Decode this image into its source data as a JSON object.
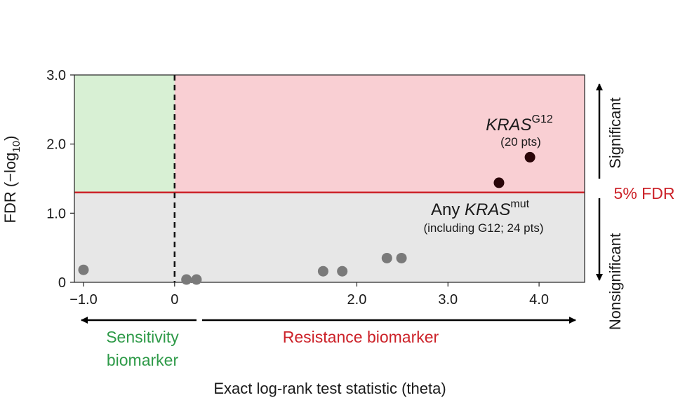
{
  "chart_data": {
    "type": "scatter",
    "xlabel": "Exact log-rank test statistic (theta)",
    "ylabel_main": "FDR (−log",
    "ylabel_sub": "10",
    "ylabel_end": ")",
    "xlim": [
      -1.1,
      4.5
    ],
    "ylim": [
      0,
      3.0
    ],
    "x_ticks": [
      {
        "value": -1.0,
        "label": "−1.0"
      },
      {
        "value": 0,
        "label": "0"
      },
      {
        "value": 2.0,
        "label": "2.0"
      },
      {
        "value": 3.0,
        "label": "3.0"
      },
      {
        "value": 4.0,
        "label": "4.0"
      }
    ],
    "y_ticks": [
      {
        "value": 0,
        "label": "0"
      },
      {
        "value": 1.0,
        "label": "1.0"
      },
      {
        "value": 2.0,
        "label": "2.0"
      },
      {
        "value": 3.0,
        "label": "3.0"
      }
    ],
    "threshold": {
      "y": 1.3,
      "label": "5% FDR",
      "color": "#cc2229"
    },
    "zero_line_x": 0,
    "regions": {
      "sensitivity_color": "#d8f0d4",
      "resistance_color": "#f9cfd3",
      "nonsignificant_color": "#e7e7e7"
    },
    "points_nonsignificant": [
      {
        "x": -1.0,
        "y": 0.18
      },
      {
        "x": 0.13,
        "y": 0.04
      },
      {
        "x": 0.24,
        "y": 0.04
      },
      {
        "x": 1.63,
        "y": 0.16
      },
      {
        "x": 1.84,
        "y": 0.16
      },
      {
        "x": 2.33,
        "y": 0.35
      },
      {
        "x": 2.49,
        "y": 0.35
      }
    ],
    "points_significant": [
      {
        "x": 3.56,
        "y": 1.44
      },
      {
        "x": 3.9,
        "y": 1.81
      }
    ],
    "colors": {
      "nonsignificant_point": "#7a7a7a",
      "significant_point": "#2a0508",
      "sensitivity_text": "#2e9a48",
      "resistance_text": "#cc2229"
    },
    "annotations": {
      "kras_g12": {
        "gene": "KRAS",
        "sup": "G12",
        "detail": "(20 pts)"
      },
      "kras_any": {
        "prefix": "Any ",
        "gene": "KRAS",
        "sup": "mut",
        "detail": "(including G12; 24 pts)"
      }
    },
    "direction_labels": {
      "sensitivity_line1": "Sensitivity",
      "sensitivity_line2": "biomarker",
      "resistance": "Resistance biomarker",
      "significant": "Significant",
      "nonsignificant": "Nonsignificant"
    }
  }
}
